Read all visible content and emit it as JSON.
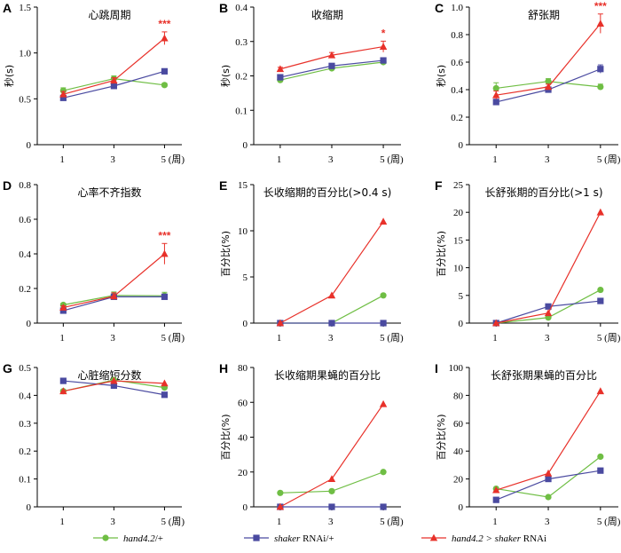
{
  "x_categories": [
    "1",
    "3",
    "5"
  ],
  "x_unit_label": "(周)",
  "colors": {
    "hand": "#6fbe44",
    "shaker": "#4a4aa0",
    "cross": "#e8312a"
  },
  "legend": [
    {
      "key": "hand",
      "italic": "hand4.2",
      "rest": "/+",
      "marker": "circle"
    },
    {
      "key": "shaker",
      "italic": "shaker",
      "rest": " RNAi/+",
      "marker": "square"
    },
    {
      "key": "cross",
      "italic": "hand4.2 > shaker",
      "rest": " RNAi",
      "marker": "triangle"
    }
  ],
  "chart_data": [
    {
      "letter": "A",
      "type": "line",
      "title": "心跳周期",
      "ylabel": "秒(s)",
      "ylim": [
        0,
        1.5
      ],
      "yticks": [
        "0",
        "0.5",
        "1.0",
        "1.5"
      ],
      "x": [
        "1",
        "3",
        "5"
      ],
      "series": [
        {
          "key": "hand",
          "values": [
            0.59,
            0.72,
            0.65
          ],
          "err": [
            0.03,
            0.03,
            0.02
          ]
        },
        {
          "key": "shaker",
          "values": [
            0.51,
            0.64,
            0.8
          ],
          "err": [
            0.02,
            0.02,
            0.02
          ]
        },
        {
          "key": "cross",
          "values": [
            0.55,
            0.7,
            1.16
          ],
          "err": [
            0.03,
            0.03,
            0.07
          ]
        }
      ],
      "sig": [
        {
          "x": "5",
          "text": "***"
        }
      ]
    },
    {
      "letter": "B",
      "type": "line",
      "title": "收缩期",
      "ylabel": "秒(s)",
      "ylim": [
        0,
        0.4
      ],
      "yticks": [
        "0",
        "0.1",
        "0.2",
        "0.3",
        "0.4"
      ],
      "x": [
        "1",
        "3",
        "5"
      ],
      "series": [
        {
          "key": "hand",
          "values": [
            0.188,
            0.222,
            0.24
          ],
          "err": [
            0.004,
            0.004,
            0.004
          ]
        },
        {
          "key": "shaker",
          "values": [
            0.196,
            0.229,
            0.245
          ],
          "err": [
            0.004,
            0.004,
            0.004
          ]
        },
        {
          "key": "cross",
          "values": [
            0.22,
            0.26,
            0.285
          ],
          "err": [
            0.005,
            0.008,
            0.016
          ]
        }
      ],
      "sig": [
        {
          "x": "5",
          "text": "*"
        }
      ]
    },
    {
      "letter": "C",
      "type": "line",
      "title": "舒张期",
      "ylabel": "秒(s)",
      "ylim": [
        0,
        1.0
      ],
      "yticks": [
        "0",
        "0.2",
        "0.4",
        "0.6",
        "0.8",
        "1.0"
      ],
      "x": [
        "1",
        "3",
        "5"
      ],
      "series": [
        {
          "key": "hand",
          "values": [
            0.41,
            0.46,
            0.42
          ],
          "err": [
            0.04,
            0.02,
            0.02
          ]
        },
        {
          "key": "shaker",
          "values": [
            0.31,
            0.4,
            0.55
          ],
          "err": [
            0.02,
            0.02,
            0.03
          ]
        },
        {
          "key": "cross",
          "values": [
            0.36,
            0.42,
            0.88
          ],
          "err": [
            0.03,
            0.02,
            0.07
          ]
        }
      ],
      "sig": [
        {
          "x": "5",
          "text": "***"
        }
      ]
    },
    {
      "letter": "D",
      "type": "line",
      "title": "心率不齐指数",
      "ylabel": "",
      "ylim": [
        0,
        0.8
      ],
      "yticks": [
        "0",
        "0.2",
        "0.4",
        "0.6",
        "0.8"
      ],
      "x": [
        "1",
        "3",
        "5"
      ],
      "series": [
        {
          "key": "hand",
          "values": [
            0.105,
            0.16,
            0.158
          ],
          "err": [
            0.01,
            0.02,
            0.02
          ]
        },
        {
          "key": "shaker",
          "values": [
            0.072,
            0.152,
            0.152
          ],
          "err": [
            0.01,
            0.01,
            0.01
          ]
        },
        {
          "key": "cross",
          "values": [
            0.09,
            0.155,
            0.4
          ],
          "err": [
            0.01,
            0.02,
            0.06
          ]
        }
      ],
      "sig": [
        {
          "x": "5",
          "text": "***"
        }
      ]
    },
    {
      "letter": "E",
      "type": "line",
      "title": "长收缩期的百分比(>0.4 s)",
      "ylabel": "百分比(%)",
      "ylim": [
        0,
        15
      ],
      "yticks": [
        "0",
        "5",
        "10",
        "15"
      ],
      "x": [
        "1",
        "3",
        "5"
      ],
      "series": [
        {
          "key": "hand",
          "values": [
            0,
            0,
            3
          ]
        },
        {
          "key": "shaker",
          "values": [
            0,
            0,
            0
          ]
        },
        {
          "key": "cross",
          "values": [
            0,
            3,
            11
          ]
        }
      ]
    },
    {
      "letter": "F",
      "type": "line",
      "title": "长舒张期的百分比(>1 s)",
      "ylabel": "百分比(%)",
      "ylim": [
        0,
        25
      ],
      "yticks": [
        "0",
        "5",
        "10",
        "15",
        "20",
        "25"
      ],
      "x": [
        "1",
        "3",
        "5"
      ],
      "series": [
        {
          "key": "hand",
          "values": [
            0,
            1,
            6
          ]
        },
        {
          "key": "shaker",
          "values": [
            0,
            3,
            4
          ]
        },
        {
          "key": "cross",
          "values": [
            0,
            1.8,
            20
          ]
        }
      ]
    },
    {
      "letter": "G",
      "type": "line",
      "title": "心脏缩短分数",
      "ylabel": "",
      "ylim": [
        0,
        0.5
      ],
      "yticks": [
        "0",
        "0.1",
        "0.2",
        "0.3",
        "0.4",
        "0.5"
      ],
      "x": [
        "1",
        "3",
        "5"
      ],
      "series": [
        {
          "key": "hand",
          "values": [
            0.415,
            0.455,
            0.428
          ]
        },
        {
          "key": "shaker",
          "values": [
            0.452,
            0.435,
            0.402
          ]
        },
        {
          "key": "cross",
          "values": [
            0.415,
            0.452,
            0.443
          ]
        }
      ]
    },
    {
      "letter": "H",
      "type": "line",
      "title": "长收缩期果蝇的百分比",
      "ylabel": "百分比(%)",
      "ylim": [
        0,
        80
      ],
      "yticks": [
        "0",
        "20",
        "40",
        "60",
        "80"
      ],
      "x": [
        "1",
        "3",
        "5"
      ],
      "series": [
        {
          "key": "hand",
          "values": [
            8,
            9,
            20
          ]
        },
        {
          "key": "shaker",
          "values": [
            0,
            0,
            0
          ]
        },
        {
          "key": "cross",
          "values": [
            0,
            16,
            59
          ]
        }
      ]
    },
    {
      "letter": "I",
      "type": "line",
      "title": "长舒张期果蝇的百分比",
      "ylabel": "百分比(%)",
      "ylim": [
        0,
        100
      ],
      "yticks": [
        "0",
        "20",
        "40",
        "60",
        "80",
        "100"
      ],
      "x": [
        "1",
        "3",
        "5"
      ],
      "series": [
        {
          "key": "hand",
          "values": [
            13,
            7,
            36
          ]
        },
        {
          "key": "shaker",
          "values": [
            5,
            20,
            26
          ]
        },
        {
          "key": "cross",
          "values": [
            12,
            24,
            83
          ]
        }
      ]
    }
  ]
}
